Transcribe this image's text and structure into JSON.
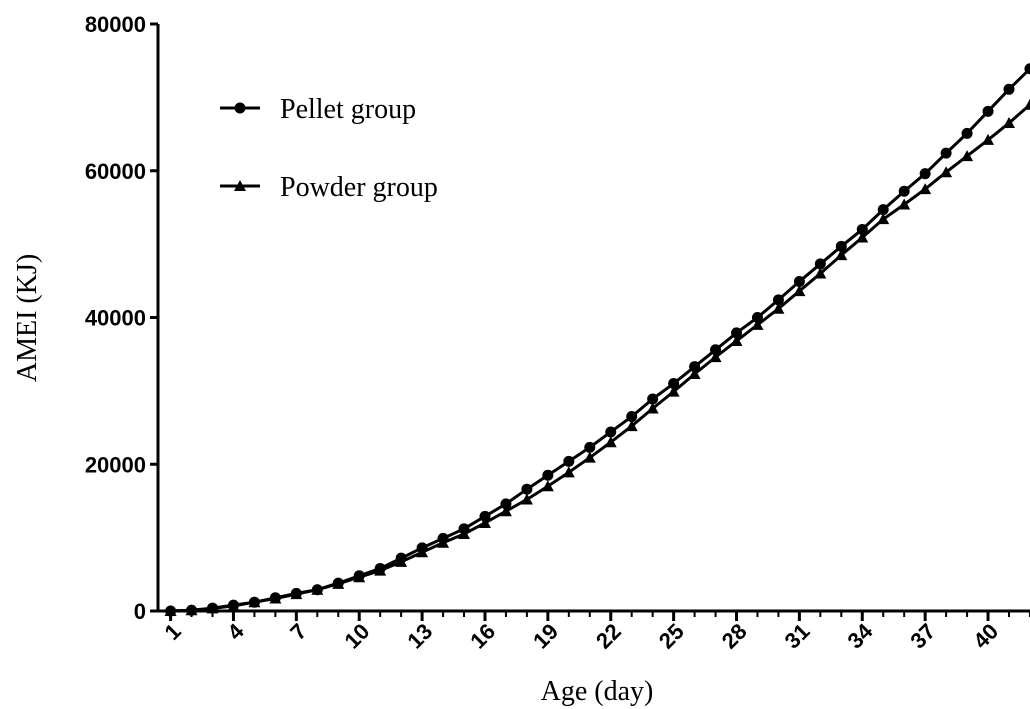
{
  "chart_data": {
    "type": "line",
    "x_label": "Age (day)",
    "y_label": "AMEI (KJ)",
    "x": [
      1,
      2,
      3,
      4,
      5,
      6,
      7,
      8,
      9,
      10,
      11,
      12,
      13,
      14,
      15,
      16,
      17,
      18,
      19,
      20,
      21,
      22,
      23,
      24,
      25,
      26,
      27,
      28,
      29,
      30,
      31,
      32,
      33,
      34,
      35,
      36,
      37,
      38,
      39,
      40,
      41,
      42
    ],
    "series": [
      {
        "name": "Pellet group",
        "color": "#000000",
        "marker": "circle",
        "values": [
          0,
          100,
          400,
          800,
          1200,
          1800,
          2400,
          2900,
          3800,
          4800,
          5800,
          7200,
          8600,
          9900,
          11200,
          12900,
          14600,
          16600,
          18500,
          20400,
          22300,
          24400,
          26500,
          28900,
          31000,
          33300,
          35600,
          37900,
          40000,
          42400,
          44900,
          47300,
          49700,
          52000,
          54700,
          57200,
          59600,
          62400,
          65100,
          68100,
          71100,
          73900
        ]
      },
      {
        "name": "Powder group",
        "color": "#000000",
        "marker": "triangle",
        "values": [
          0,
          100,
          350,
          700,
          1200,
          1700,
          2300,
          2900,
          3700,
          4600,
          5500,
          6700,
          8000,
          9300,
          10500,
          12000,
          13600,
          15200,
          17000,
          18900,
          20900,
          23000,
          25200,
          27600,
          29900,
          32300,
          34600,
          36800,
          39000,
          41200,
          43600,
          46000,
          48500,
          50900,
          53400,
          55400,
          57500,
          59800,
          62000,
          64200,
          66500,
          69000
        ]
      }
    ],
    "xlim": [
      0.4,
      42.05
    ],
    "xticks": [
      1,
      4,
      7,
      10,
      13,
      16,
      19,
      22,
      25,
      28,
      31,
      34,
      37,
      40
    ],
    "ylim": [
      0,
      80000
    ],
    "yticks": [
      0,
      20000,
      40000,
      60000,
      80000
    ],
    "legend": "top-left"
  }
}
